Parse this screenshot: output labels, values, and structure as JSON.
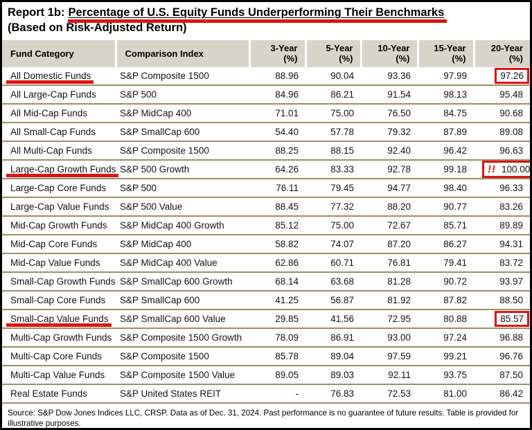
{
  "title": {
    "prefix": "Report 1b:",
    "highlighted": "Percentage of U.S. Equity Funds Underperforming Their Benchmarks",
    "line2": "(Based on Risk-Adjusted Return)"
  },
  "colors": {
    "accent_red": "#dc1414",
    "header_bg": "#d9d4c9",
    "row_divider": "#9c8e66"
  },
  "annotations": {
    "alert_glyph": "!!"
  },
  "table": {
    "columns": [
      {
        "label": "Fund Category"
      },
      {
        "label": "Comparison Index"
      },
      {
        "label": "3-Year",
        "unit": "(%)"
      },
      {
        "label": "5-Year",
        "unit": "(%)"
      },
      {
        "label": "10-Year",
        "unit": "(%)"
      },
      {
        "label": "15-Year",
        "unit": "(%)"
      },
      {
        "label": "20-Year",
        "unit": "(%)"
      }
    ],
    "rows": [
      {
        "category": "All Domestic Funds",
        "index": "S&P Composite 1500",
        "values": [
          "88.96",
          "90.04",
          "93.36",
          "97.99",
          "97.26"
        ],
        "category_underlined": true,
        "value_boxed": true,
        "alert": false
      },
      {
        "category": "All Large-Cap Funds",
        "index": "S&P 500",
        "values": [
          "84.96",
          "86.21",
          "91.54",
          "98.13",
          "95.48"
        ]
      },
      {
        "category": "All Mid-Cap Funds",
        "index": "S&P MidCap 400",
        "values": [
          "71.01",
          "75.00",
          "76.50",
          "84.75",
          "90.68"
        ]
      },
      {
        "category": "All Small-Cap Funds",
        "index": "S&P SmallCap 600",
        "values": [
          "54.40",
          "57.78",
          "79.32",
          "87.89",
          "89.08"
        ]
      },
      {
        "category": "All Multi-Cap Funds",
        "index": "S&P Composite 1500",
        "values": [
          "88.25",
          "88.15",
          "92.40",
          "96.42",
          "96.63"
        ]
      },
      {
        "category": "Large-Cap Growth Funds",
        "index": "S&P 500 Growth",
        "values": [
          "64.26",
          "83.33",
          "92.78",
          "99.18",
          "100.00"
        ],
        "category_underlined": true,
        "value_boxed": true,
        "alert": true
      },
      {
        "category": "Large-Cap Core Funds",
        "index": "S&P 500",
        "values": [
          "76.11",
          "79.45",
          "94.77",
          "98.40",
          "96.33"
        ]
      },
      {
        "category": "Large-Cap Value Funds",
        "index": "S&P 500 Value",
        "values": [
          "88.45",
          "77.32",
          "88.20",
          "90.77",
          "83.26"
        ]
      },
      {
        "category": "Mid-Cap Growth Funds",
        "index": "S&P MidCap 400 Growth",
        "values": [
          "85.12",
          "75.00",
          "72.67",
          "85.71",
          "89.89"
        ]
      },
      {
        "category": "Mid-Cap Core Funds",
        "index": "S&P MidCap 400",
        "values": [
          "58.82",
          "74.07",
          "87.20",
          "86.27",
          "94.31"
        ]
      },
      {
        "category": "Mid-Cap Value Funds",
        "index": "S&P MidCap 400 Value",
        "values": [
          "62.86",
          "60.71",
          "76.81",
          "79.41",
          "83.72"
        ]
      },
      {
        "category": "Small-Cap Growth Funds",
        "index": "S&P SmallCap 600 Growth",
        "values": [
          "68.14",
          "63.68",
          "81.28",
          "90.72",
          "93.97"
        ]
      },
      {
        "category": "Small-Cap Core Funds",
        "index": "S&P SmallCap 600",
        "values": [
          "41.25",
          "56.87",
          "81.92",
          "87.82",
          "88.50"
        ]
      },
      {
        "category": "Small-Cap Value Funds",
        "index": "S&P SmallCap 600 Value",
        "values": [
          "29.85",
          "41.56",
          "72.95",
          "80.88",
          "85.57"
        ],
        "category_underlined": true,
        "value_boxed": true,
        "alert": false
      },
      {
        "category": "Multi-Cap Growth Funds",
        "index": "S&P Composite 1500 Growth",
        "values": [
          "78.09",
          "86.91",
          "93.00",
          "97.24",
          "96.88"
        ]
      },
      {
        "category": "Multi-Cap Core Funds",
        "index": "S&P Composite 1500",
        "values": [
          "85.78",
          "89.04",
          "97.59",
          "99.21",
          "96.76"
        ]
      },
      {
        "category": "Multi-Cap Value Funds",
        "index": "S&P Composite 1500 Value",
        "values": [
          "89.05",
          "89.03",
          "92.11",
          "93.75",
          "87.50"
        ]
      },
      {
        "category": "Real Estate Funds",
        "index": "S&P United States REIT",
        "values": [
          "-",
          "76.83",
          "72.53",
          "81.00",
          "86.42"
        ]
      }
    ]
  },
  "footer": {
    "source": "Source: S&P Dow Jones Indices LLC, CRSP.  Data as of Dec. 31, 2024.  Past performance is no guarantee of future results.  Table is provided for illustrative purposes."
  }
}
